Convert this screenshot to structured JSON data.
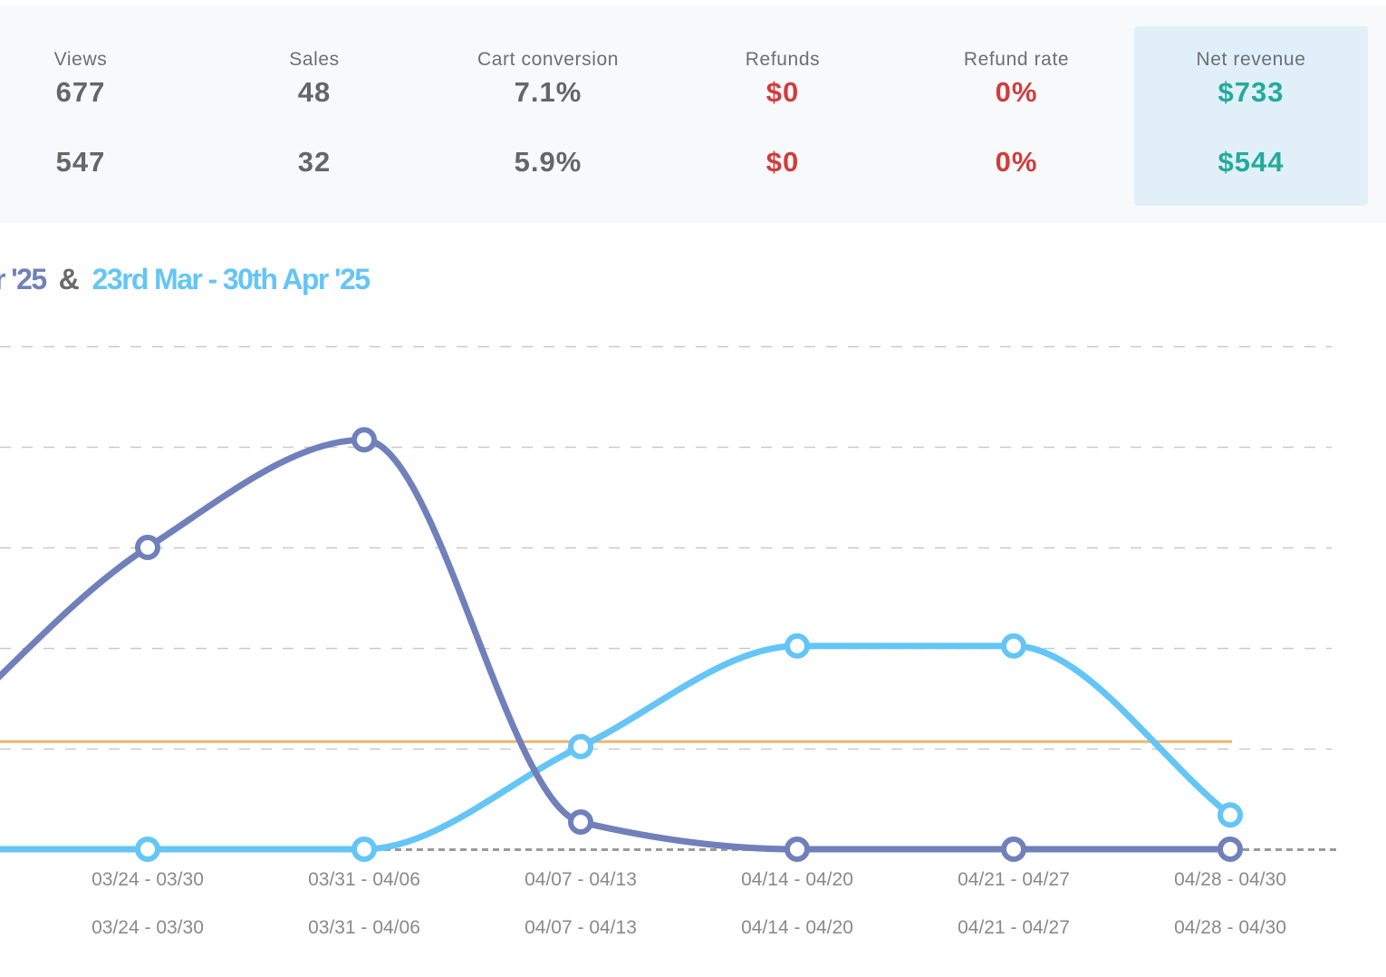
{
  "colors": {
    "series_a": "#6f80ba",
    "series_b": "#64c5f7",
    "average_line": "#f2b26e",
    "negative": "#d23c3c",
    "positive": "#23aa9d",
    "neutral": "#666666"
  },
  "stats": [
    {
      "label": "Views",
      "current": "677",
      "previous": "547",
      "tone": "neutral"
    },
    {
      "label": "Sales",
      "current": "48",
      "previous": "32",
      "tone": "neutral"
    },
    {
      "label": "Cart conversion",
      "current": "7.1%",
      "previous": "5.9%",
      "tone": "neutral"
    },
    {
      "label": "Refunds",
      "current": "$0",
      "previous": "$0",
      "tone": "negative"
    },
    {
      "label": "Refund rate",
      "current": "0%",
      "previous": "0%",
      "tone": "negative"
    },
    {
      "label": "Net revenue",
      "current": "$733",
      "previous": "$544",
      "tone": "positive",
      "highlighted": true
    }
  ],
  "range_title": {
    "primary": "r '25",
    "separator": "&",
    "secondary": "23rd Mar - 30th Apr '25"
  },
  "chart_data": {
    "type": "line",
    "categories": [
      "03/24 - 03/30",
      "03/31 - 04/06",
      "04/07 - 04/13",
      "04/14 - 04/20",
      "04/21 - 04/27",
      "04/28 - 04/30"
    ],
    "secondary_categories": [
      "03/24 - 03/30",
      "03/31 - 04/06",
      "04/07 - 04/13",
      "04/14 - 04/20",
      "04/21 - 04/27",
      "04/28 - 04/30"
    ],
    "ylim": [
      0,
      5
    ],
    "gridlines": [
      1,
      2,
      3,
      4,
      5
    ],
    "grid": true,
    "baseline_dashed": true,
    "average_value": 1.07,
    "series": [
      {
        "values": [
          3.0,
          4.07,
          0.27,
          0.0,
          0.0,
          0.0
        ],
        "left_edge_value": 1.07,
        "color_key": "series_a"
      },
      {
        "values": [
          0.0,
          0.0,
          1.02,
          2.02,
          2.02,
          0.34
        ],
        "left_edge_value": 0.0,
        "color_key": "series_b"
      }
    ]
  }
}
